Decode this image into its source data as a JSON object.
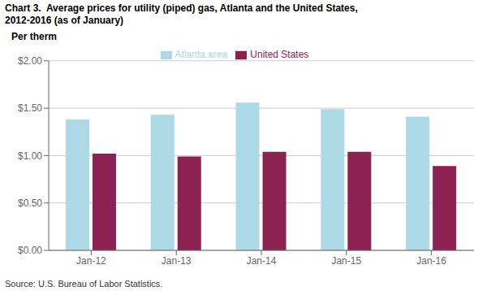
{
  "chart_data": {
    "type": "bar",
    "title": "Chart 3.  Average prices for utility (piped) gas, Atlanta and the United States,",
    "subtitle": "2012-2016 (as of January)",
    "y_label": "Per therm",
    "source": "Source: U.S. Bureau of Labor Statistics.",
    "categories": [
      "Jan-12",
      "Jan-13",
      "Jan-14",
      "Jan-15",
      "Jan-16"
    ],
    "series": [
      {
        "name": "Atlanta area",
        "color": "#ADD8E6",
        "values": [
          1.38,
          1.43,
          1.56,
          1.49,
          1.41
        ]
      },
      {
        "name": "United States",
        "color": "#8B2252",
        "values": [
          1.02,
          0.99,
          1.04,
          1.04,
          0.89
        ]
      }
    ],
    "ylim": [
      0,
      2.0
    ],
    "yticks": [
      {
        "value": 0.0,
        "label": "$0.00"
      },
      {
        "value": 0.5,
        "label": "$0.50"
      },
      {
        "value": 1.0,
        "label": "$1.00"
      },
      {
        "value": 1.5,
        "label": "$1.50"
      },
      {
        "value": 2.0,
        "label": "$2.00"
      }
    ],
    "grid": true,
    "legend": "top"
  }
}
